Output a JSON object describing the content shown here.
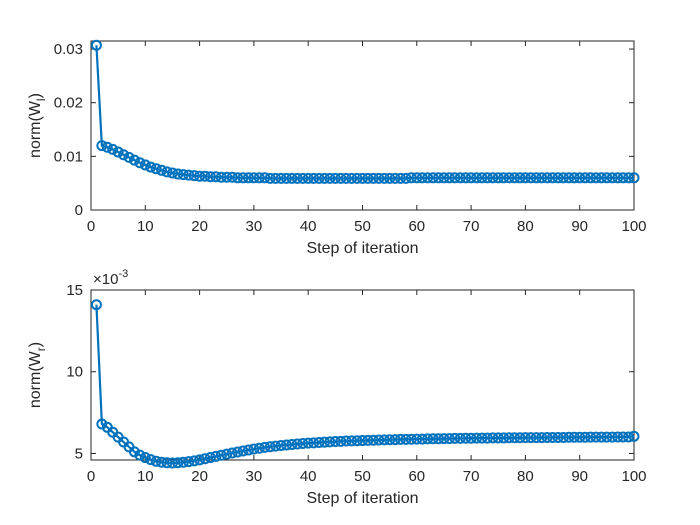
{
  "chart_data": [
    {
      "type": "line",
      "xlabel": "Step of iteration",
      "ylabel": "norm(W_l)",
      "ylabel_main": "norm(W",
      "ylabel_sub": "l",
      "ylabel_close": ")",
      "xlim": [
        0,
        100
      ],
      "ylim": [
        0,
        0.0315
      ],
      "xticks": [
        0,
        10,
        20,
        30,
        40,
        50,
        60,
        70,
        80,
        90,
        100
      ],
      "xtick_labels": [
        "0",
        "10",
        "20",
        "30",
        "40",
        "50",
        "60",
        "70",
        "80",
        "90",
        "100"
      ],
      "yticks": [
        0,
        0.01,
        0.02,
        0.03
      ],
      "ytick_labels": [
        "0",
        "0.01",
        "0.02",
        "0.03"
      ],
      "exponent_label": null,
      "grid": false,
      "series": [
        {
          "color": "#0072BD",
          "marker": "circle",
          "x": [
            1,
            2,
            3,
            4,
            5,
            6,
            7,
            8,
            9,
            10,
            11,
            12,
            13,
            14,
            15,
            16,
            17,
            18,
            19,
            20,
            21,
            22,
            23,
            24,
            25,
            26,
            27,
            28,
            29,
            30,
            31,
            32,
            33,
            34,
            35,
            36,
            37,
            38,
            39,
            40,
            41,
            42,
            43,
            44,
            45,
            46,
            47,
            48,
            49,
            50,
            51,
            52,
            53,
            54,
            55,
            56,
            57,
            58,
            59,
            60,
            61,
            62,
            63,
            64,
            65,
            66,
            67,
            68,
            69,
            70,
            71,
            72,
            73,
            74,
            75,
            76,
            77,
            78,
            79,
            80,
            81,
            82,
            83,
            84,
            85,
            86,
            87,
            88,
            89,
            90,
            91,
            92,
            93,
            94,
            95,
            96,
            97,
            98,
            99,
            100
          ],
          "y": [
            0.0307,
            0.012,
            0.0117,
            0.0113,
            0.0108,
            0.0103,
            0.0098,
            0.0093,
            0.0088,
            0.0084,
            0.008,
            0.0077,
            0.0074,
            0.0071,
            0.0069,
            0.0067,
            0.0066,
            0.0065,
            0.0064,
            0.0063,
            0.0063,
            0.0062,
            0.0062,
            0.0061,
            0.0061,
            0.0061,
            0.006,
            0.006,
            0.006,
            0.006,
            0.006,
            0.006,
            0.0059,
            0.0059,
            0.0059,
            0.0059,
            0.0059,
            0.0059,
            0.0059,
            0.0059,
            0.0059,
            0.0059,
            0.0059,
            0.0059,
            0.0059,
            0.0059,
            0.0059,
            0.0059,
            0.0059,
            0.0059,
            0.0059,
            0.0059,
            0.0059,
            0.0059,
            0.0059,
            0.0059,
            0.0059,
            0.0059,
            0.006,
            0.006,
            0.006,
            0.006,
            0.006,
            0.006,
            0.006,
            0.006,
            0.006,
            0.006,
            0.006,
            0.006,
            0.006,
            0.006,
            0.006,
            0.006,
            0.006,
            0.006,
            0.006,
            0.006,
            0.006,
            0.006,
            0.006,
            0.006,
            0.006,
            0.006,
            0.006,
            0.006,
            0.006,
            0.006,
            0.006,
            0.006,
            0.006,
            0.006,
            0.006,
            0.006,
            0.006,
            0.006,
            0.006,
            0.006,
            0.006,
            0.006
          ]
        }
      ]
    },
    {
      "type": "line",
      "xlabel": "Step of iteration",
      "ylabel": "norm(W_r)",
      "ylabel_main": "norm(W",
      "ylabel_sub": "r",
      "ylabel_close": ")",
      "xlim": [
        0,
        100
      ],
      "ylim": [
        4.6,
        15
      ],
      "xticks": [
        0,
        10,
        20,
        30,
        40,
        50,
        60,
        70,
        80,
        90,
        100
      ],
      "xtick_labels": [
        "0",
        "10",
        "20",
        "30",
        "40",
        "50",
        "60",
        "70",
        "80",
        "90",
        "100"
      ],
      "yticks": [
        5,
        10,
        15
      ],
      "ytick_labels": [
        "5",
        "10",
        "15"
      ],
      "exponent_label": "×10",
      "exponent_power": "-3",
      "grid": false,
      "series": [
        {
          "color": "#0072BD",
          "marker": "circle",
          "x": [
            1,
            2,
            3,
            4,
            5,
            6,
            7,
            8,
            9,
            10,
            11,
            12,
            13,
            14,
            15,
            16,
            17,
            18,
            19,
            20,
            21,
            22,
            23,
            24,
            25,
            26,
            27,
            28,
            29,
            30,
            31,
            32,
            33,
            34,
            35,
            36,
            37,
            38,
            39,
            40,
            41,
            42,
            43,
            44,
            45,
            46,
            47,
            48,
            49,
            50,
            51,
            52,
            53,
            54,
            55,
            56,
            57,
            58,
            59,
            60,
            61,
            62,
            63,
            64,
            65,
            66,
            67,
            68,
            69,
            70,
            71,
            72,
            73,
            74,
            75,
            76,
            77,
            78,
            79,
            80,
            81,
            82,
            83,
            84,
            85,
            86,
            87,
            88,
            89,
            90,
            91,
            92,
            93,
            94,
            95,
            96,
            97,
            98,
            99,
            100
          ],
          "y": [
            14.1,
            6.8,
            6.6,
            6.3,
            6.0,
            5.7,
            5.4,
            5.1,
            4.9,
            4.75,
            4.62,
            4.52,
            4.46,
            4.43,
            4.42,
            4.43,
            4.46,
            4.5,
            4.55,
            4.61,
            4.68,
            4.75,
            4.82,
            4.89,
            4.96,
            5.03,
            5.09,
            5.15,
            5.21,
            5.27,
            5.32,
            5.37,
            5.41,
            5.45,
            5.49,
            5.52,
            5.55,
            5.58,
            5.61,
            5.63,
            5.65,
            5.67,
            5.69,
            5.71,
            5.73,
            5.74,
            5.76,
            5.77,
            5.78,
            5.79,
            5.8,
            5.81,
            5.82,
            5.83,
            5.84,
            5.85,
            5.86,
            5.86,
            5.87,
            5.88,
            5.88,
            5.89,
            5.9,
            5.9,
            5.91,
            5.91,
            5.92,
            5.92,
            5.93,
            5.93,
            5.94,
            5.94,
            5.94,
            5.95,
            5.95,
            5.95,
            5.96,
            5.96,
            5.96,
            5.97,
            5.97,
            5.97,
            5.97,
            5.98,
            5.98,
            5.98,
            5.98,
            5.99,
            5.99,
            5.99,
            5.99,
            6.0,
            6.0,
            6.0,
            6.0,
            6.0,
            6.01,
            6.01,
            6.01,
            6.05
          ]
        }
      ]
    }
  ]
}
